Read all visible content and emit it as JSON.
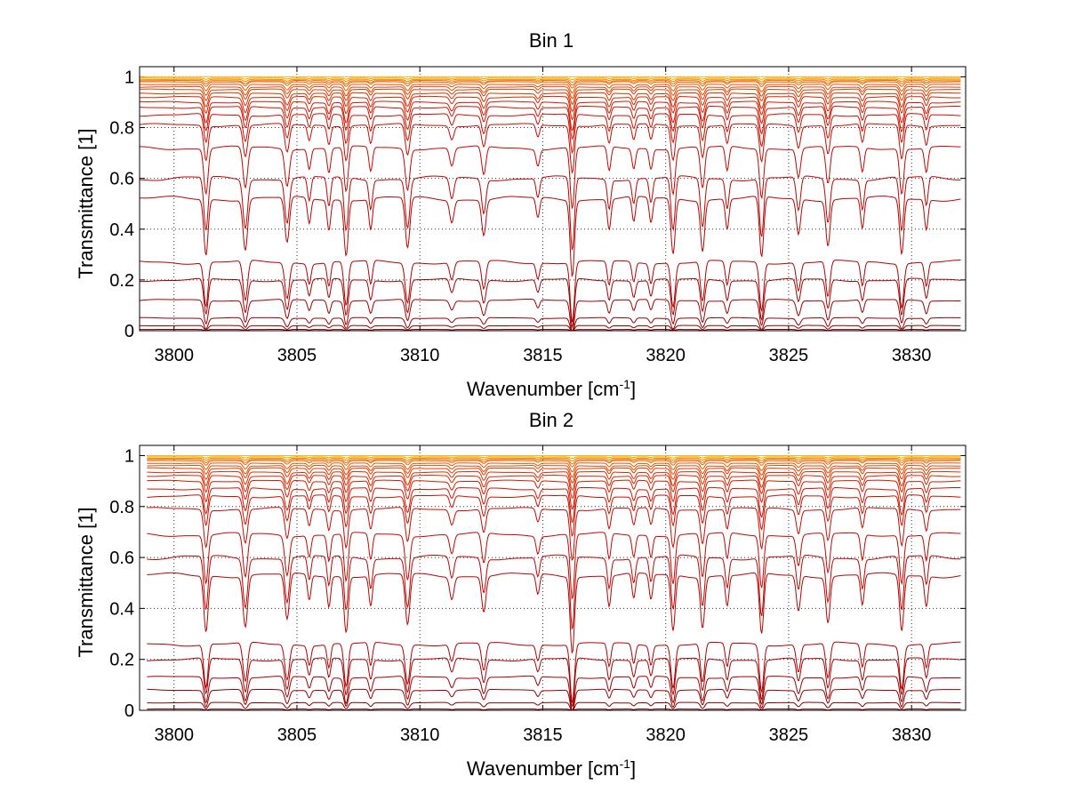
{
  "chart_data": [
    {
      "type": "line",
      "title": "Bin 1",
      "xlabel": "Wavenumber [cm",
      "xlabel_sup": "-1",
      "xlabel_suffix": "]",
      "ylabel": "Transmittance [1]",
      "xlim": [
        3798.6,
        3832.2
      ],
      "ylim": [
        0,
        1.04
      ],
      "xticks": [
        3800,
        3805,
        3810,
        3815,
        3820,
        3825,
        3830
      ],
      "yticks": [
        0,
        0.2,
        0.4,
        0.6,
        0.8,
        1
      ],
      "ytick_labels": [
        "0",
        "0.2",
        "0.4",
        "0.6",
        "0.8",
        "1"
      ],
      "grid": true,
      "x": [
        3798.6,
        3832.0
      ],
      "series": [
        {
          "baseline": 1.0,
          "color": "#f5c000"
        },
        {
          "baseline": 0.995,
          "color": "#f7a000"
        },
        {
          "baseline": 0.99,
          "color": "#f58800"
        },
        {
          "baseline": 0.985,
          "color": "#f07000"
        },
        {
          "baseline": 0.98,
          "color": "#ec6200"
        },
        {
          "baseline": 0.97,
          "color": "#e85400"
        },
        {
          "baseline": 0.96,
          "color": "#e44800"
        },
        {
          "baseline": 0.95,
          "color": "#e03c00"
        },
        {
          "baseline": 0.935,
          "color": "#dc3000"
        },
        {
          "baseline": 0.92,
          "color": "#d82600"
        },
        {
          "baseline": 0.9,
          "color": "#d41c00"
        },
        {
          "baseline": 0.88,
          "color": "#d01400"
        },
        {
          "baseline": 0.85,
          "color": "#cc1000"
        },
        {
          "baseline": 0.81,
          "color": "#c80c00"
        },
        {
          "baseline": 0.72,
          "color": "#c20800"
        },
        {
          "baseline": 0.6,
          "color": "#bc0600"
        },
        {
          "baseline": 0.52,
          "color": "#b60400"
        },
        {
          "baseline": 0.27,
          "color": "#b00200"
        },
        {
          "baseline": 0.2,
          "color": "#a80000"
        },
        {
          "baseline": 0.12,
          "color": "#a00000"
        },
        {
          "baseline": 0.05,
          "color": "#960000"
        },
        {
          "baseline": 0.02,
          "color": "#8a0000"
        },
        {
          "baseline": 0.005,
          "color": "#800000"
        }
      ]
    },
    {
      "type": "line",
      "title": "Bin 2",
      "xlabel": "Wavenumber [cm",
      "xlabel_sup": "-1",
      "xlabel_suffix": "]",
      "ylabel": "Transmittance [1]",
      "xlim": [
        3798.6,
        3832.2
      ],
      "ylim": [
        0,
        1.04
      ],
      "xticks": [
        3800,
        3805,
        3810,
        3815,
        3820,
        3825,
        3830
      ],
      "yticks": [
        0,
        0.2,
        0.4,
        0.6,
        0.8,
        1
      ],
      "ytick_labels": [
        "0",
        "0.2",
        "0.4",
        "0.6",
        "0.8",
        "1"
      ],
      "grid": true,
      "x": [
        3798.9,
        3832.0
      ],
      "series": [
        {
          "baseline": 1.0,
          "color": "#f5c000"
        },
        {
          "baseline": 0.995,
          "color": "#f7a000"
        },
        {
          "baseline": 0.99,
          "color": "#f58800"
        },
        {
          "baseline": 0.985,
          "color": "#f07000"
        },
        {
          "baseline": 0.98,
          "color": "#ec6200"
        },
        {
          "baseline": 0.97,
          "color": "#e85400"
        },
        {
          "baseline": 0.96,
          "color": "#e44800"
        },
        {
          "baseline": 0.95,
          "color": "#e03c00"
        },
        {
          "baseline": 0.935,
          "color": "#dc3000"
        },
        {
          "baseline": 0.92,
          "color": "#d82600"
        },
        {
          "baseline": 0.9,
          "color": "#d41c00"
        },
        {
          "baseline": 0.87,
          "color": "#d01400"
        },
        {
          "baseline": 0.84,
          "color": "#cc1000"
        },
        {
          "baseline": 0.79,
          "color": "#c80c00"
        },
        {
          "baseline": 0.69,
          "color": "#c20800"
        },
        {
          "baseline": 0.6,
          "color": "#bc0600"
        },
        {
          "baseline": 0.53,
          "color": "#b60400"
        },
        {
          "baseline": 0.26,
          "color": "#b00200"
        },
        {
          "baseline": 0.2,
          "color": "#a80000"
        },
        {
          "baseline": 0.13,
          "color": "#a00000"
        },
        {
          "baseline": 0.08,
          "color": "#960000"
        },
        {
          "baseline": 0.03,
          "color": "#8a0000"
        },
        {
          "baseline": 0.005,
          "color": "#800000"
        }
      ]
    }
  ],
  "absorption_lines": [
    {
      "x": 3801.3,
      "depth": 0.55,
      "width": 0.12
    },
    {
      "x": 3802.9,
      "depth": 0.5,
      "width": 0.13
    },
    {
      "x": 3804.6,
      "depth": 0.45,
      "width": 0.13
    },
    {
      "x": 3805.5,
      "depth": 0.25,
      "width": 0.1
    },
    {
      "x": 3806.3,
      "depth": 0.3,
      "width": 0.1
    },
    {
      "x": 3807.0,
      "depth": 0.55,
      "width": 0.12
    },
    {
      "x": 3808.0,
      "depth": 0.3,
      "width": 0.1
    },
    {
      "x": 3809.5,
      "depth": 0.5,
      "width": 0.13
    },
    {
      "x": 3811.3,
      "depth": 0.22,
      "width": 0.12
    },
    {
      "x": 3812.6,
      "depth": 0.35,
      "width": 0.12
    },
    {
      "x": 3814.8,
      "depth": 0.2,
      "width": 0.1
    },
    {
      "x": 3816.2,
      "depth": 0.75,
      "width": 0.12
    },
    {
      "x": 3817.7,
      "depth": 0.3,
      "width": 0.1
    },
    {
      "x": 3818.7,
      "depth": 0.25,
      "width": 0.1
    },
    {
      "x": 3819.4,
      "depth": 0.25,
      "width": 0.1
    },
    {
      "x": 3820.3,
      "depth": 0.55,
      "width": 0.12
    },
    {
      "x": 3821.5,
      "depth": 0.5,
      "width": 0.12
    },
    {
      "x": 3822.5,
      "depth": 0.3,
      "width": 0.1
    },
    {
      "x": 3823.9,
      "depth": 0.6,
      "width": 0.12
    },
    {
      "x": 3825.4,
      "depth": 0.35,
      "width": 0.12
    },
    {
      "x": 3826.6,
      "depth": 0.45,
      "width": 0.12
    },
    {
      "x": 3828.0,
      "depth": 0.3,
      "width": 0.1
    },
    {
      "x": 3829.6,
      "depth": 0.55,
      "width": 0.12
    },
    {
      "x": 3830.6,
      "depth": 0.3,
      "width": 0.1
    }
  ]
}
